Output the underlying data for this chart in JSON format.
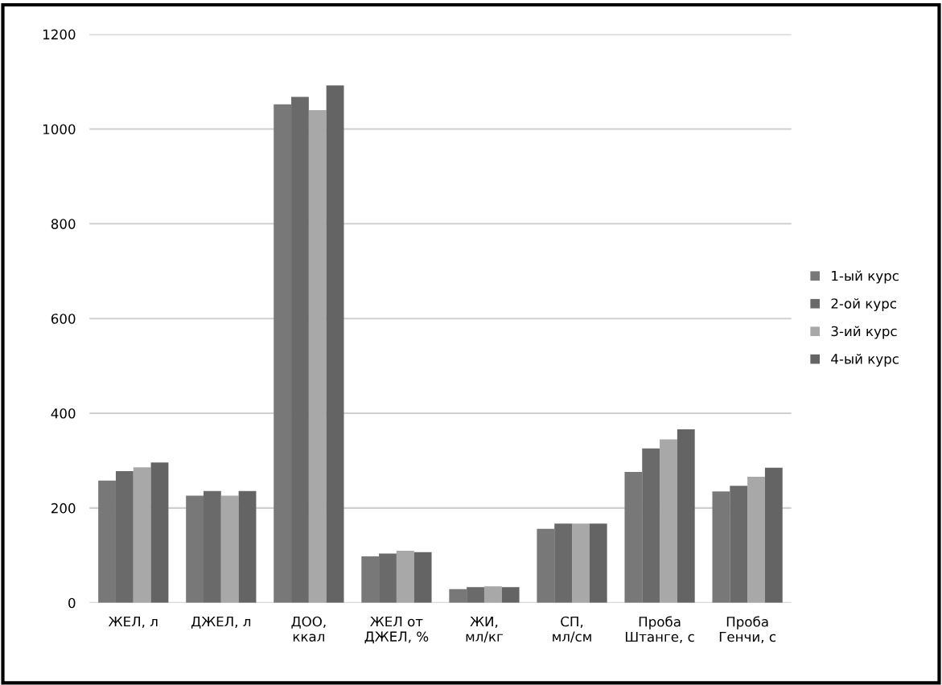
{
  "chart_data": {
    "type": "bar",
    "categories": [
      "ЖЕЛ, л",
      "ДЖЕЛ, л",
      "ДОО,\nккал",
      "ЖЕЛ от\nДЖЕЛ, %",
      "ЖИ,\nмл/кг",
      "СП,\nмл/см",
      "Проба\nШтанге, с",
      "Проба\nГенчи, с"
    ],
    "series": [
      {
        "name": "1-ый курс",
        "color": "#787878",
        "values": [
          258,
          226,
          1052,
          98,
          29,
          156,
          276,
          235
        ]
      },
      {
        "name": "2-ой курс",
        "color": "#6a6a6a",
        "values": [
          278,
          236,
          1068,
          104,
          33,
          167,
          326,
          247
        ]
      },
      {
        "name": "3-ий курс",
        "color": "#a8a8a8",
        "values": [
          286,
          226,
          1040,
          110,
          35,
          167,
          345,
          266
        ]
      },
      {
        "name": "4-ый курс",
        "color": "#646464",
        "values": [
          296,
          236,
          1092,
          107,
          33,
          167,
          366,
          285
        ]
      }
    ],
    "ylim": [
      0,
      1200
    ],
    "yticks": [
      0,
      200,
      400,
      600,
      800,
      1000,
      1200
    ],
    "grid": "y",
    "legend": "right"
  }
}
